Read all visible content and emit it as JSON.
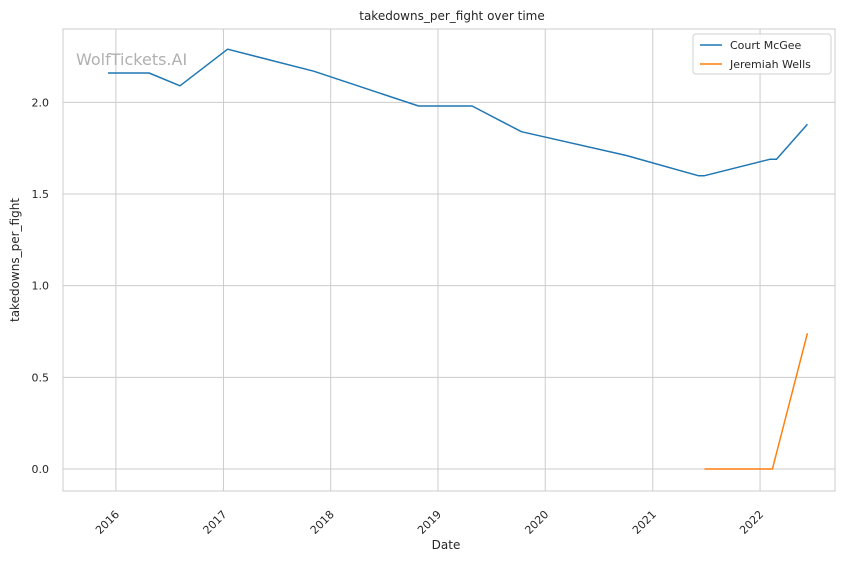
{
  "chart_data": {
    "type": "line",
    "title": "takedowns_per_fight over time",
    "xlabel": "Date",
    "ylabel": "takedowns_per_fight",
    "watermark": "WolfTickets.AI",
    "x_ticks": [
      "2016",
      "2017",
      "2018",
      "2019",
      "2020",
      "2021",
      "2022"
    ],
    "y_ticks": [
      "0.0",
      "0.5",
      "1.0",
      "1.5",
      "2.0"
    ],
    "xlim": [
      "2015-07-05",
      "2022-09-13"
    ],
    "ylim": [
      -0.12,
      2.4
    ],
    "grid": true,
    "legend_position": "top-right",
    "series": [
      {
        "name": "Court McGee",
        "color": "#1f77b4",
        "points": [
          [
            "2015-12-05",
            2.16
          ],
          [
            "2016-04-23",
            2.16
          ],
          [
            "2016-08-06",
            2.09
          ],
          [
            "2017-01-15",
            2.29
          ],
          [
            "2017-11-04",
            2.17
          ],
          [
            "2018-10-27",
            1.98
          ],
          [
            "2019-04-27",
            1.98
          ],
          [
            "2019-10-12",
            1.84
          ],
          [
            "2020-10-03",
            1.71
          ],
          [
            "2021-06-05",
            1.6
          ],
          [
            "2021-06-26",
            1.6
          ],
          [
            "2022-02-05",
            1.69
          ],
          [
            "2022-02-26",
            1.69
          ],
          [
            "2022-06-11",
            1.88
          ]
        ]
      },
      {
        "name": "Jeremiah Wells",
        "color": "#ff7f0e",
        "points": [
          [
            "2021-06-26",
            0.0
          ],
          [
            "2022-02-12",
            0.0
          ],
          [
            "2022-06-11",
            0.74
          ]
        ]
      }
    ]
  }
}
